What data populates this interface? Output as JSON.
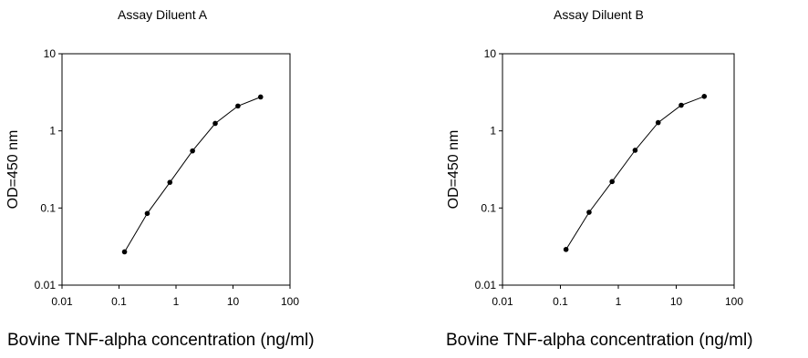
{
  "chart_data": [
    {
      "type": "line",
      "title": "Assay Diluent A",
      "xlabel": "Bovine TNF-alpha concentration (ng/ml)",
      "ylabel": "OD=450 nm",
      "xscale": "log",
      "yscale": "log",
      "xlim": [
        0.01,
        100
      ],
      "ylim": [
        0.01,
        10
      ],
      "xticks": [
        "0.01",
        "0.1",
        "1",
        "10",
        "100"
      ],
      "yticks": [
        "0.01",
        "0.1",
        "1",
        "10"
      ],
      "grid": false,
      "series": [
        {
          "x": [
            0.125,
            0.313,
            0.781,
            1.95,
            4.88,
            12.2,
            30.5
          ],
          "y": [
            0.027,
            0.085,
            0.215,
            0.55,
            1.25,
            2.1,
            2.75
          ]
        }
      ]
    },
    {
      "type": "line",
      "title": "Assay Diluent B",
      "xlabel": "Bovine TNF-alpha concentration (ng/ml)",
      "ylabel": "OD=450 nm",
      "xscale": "log",
      "yscale": "log",
      "xlim": [
        0.01,
        100
      ],
      "ylim": [
        0.01,
        10
      ],
      "xticks": [
        "0.01",
        "0.1",
        "1",
        "10",
        "100"
      ],
      "yticks": [
        "0.01",
        "0.1",
        "1",
        "10"
      ],
      "grid": false,
      "series": [
        {
          "x": [
            0.125,
            0.313,
            0.781,
            1.95,
            4.88,
            12.2,
            30.5
          ],
          "y": [
            0.029,
            0.088,
            0.22,
            0.56,
            1.28,
            2.15,
            2.8
          ]
        }
      ]
    }
  ]
}
